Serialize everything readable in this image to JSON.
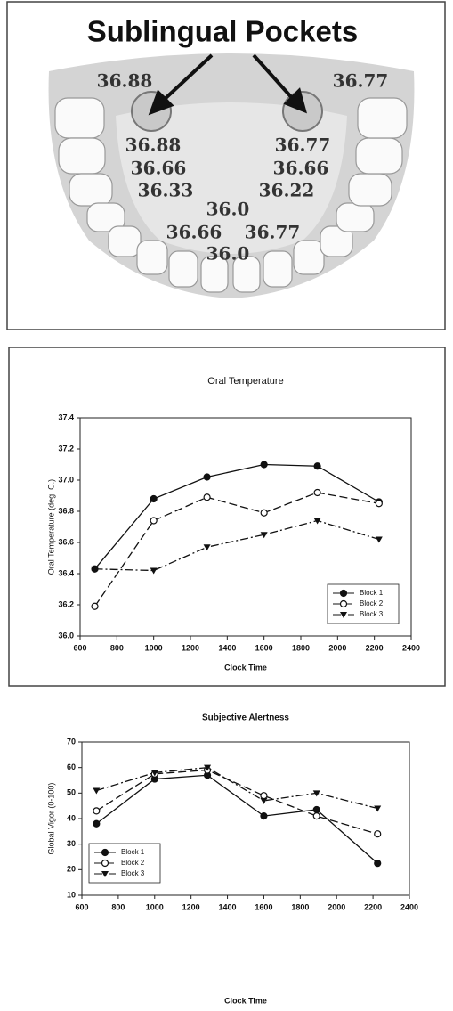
{
  "diagram": {
    "title": "Sublingual Pockets",
    "labels": [
      "36.88",
      "36.77",
      "36.88",
      "36.77",
      "36.66",
      "36.66",
      "36.33",
      "36.22",
      "36.0",
      "36.66",
      "36.77",
      "36.0"
    ]
  },
  "chart_data": [
    {
      "type": "line",
      "title": "Oral Temperature",
      "xlabel": "Clock Time",
      "ylabel": "Oral Temperature (deg. C.)",
      "x": [
        680,
        1000,
        1290,
        1600,
        1890,
        2225
      ],
      "xlim": [
        600,
        2400
      ],
      "xticks": [
        600,
        800,
        1000,
        1200,
        1400,
        1600,
        1800,
        2000,
        2200,
        2400
      ],
      "ylim": [
        36.0,
        37.4
      ],
      "yticks": [
        {
          "value": 36,
          "label": "36.0"
        },
        36.2,
        36.4,
        36.6,
        36.8,
        {
          "value": 37,
          "label": "37.0"
        },
        37.2,
        37.4
      ],
      "legend": "lower-right",
      "series": [
        {
          "name": "Block 1",
          "color": "#111111",
          "marker": "filled-circle",
          "dash": "solid",
          "values": [
            36.43,
            36.88,
            37.02,
            37.1,
            37.09,
            36.86
          ]
        },
        {
          "name": "Block 2",
          "color": "#111111",
          "marker": "open-circle",
          "dash": "dashed",
          "values": [
            36.19,
            36.74,
            36.89,
            36.79,
            36.92,
            36.85
          ]
        },
        {
          "name": "Block 3",
          "color": "#111111",
          "marker": "triangle-down",
          "dash": "dash-dot",
          "values": [
            36.43,
            36.42,
            36.57,
            36.65,
            36.74,
            36.62
          ]
        }
      ]
    },
    {
      "type": "line",
      "title": "Subjective Alertness",
      "xlabel": "Clock Time",
      "ylabel": "Global Vigor (0-100)",
      "x": [
        680,
        1000,
        1290,
        1600,
        1890,
        2225
      ],
      "xlim": [
        600,
        2400
      ],
      "xticks": [
        600,
        800,
        1000,
        1200,
        1400,
        1600,
        1800,
        2000,
        2200,
        2400
      ],
      "ylim": [
        10,
        70
      ],
      "yticks": [
        10,
        20,
        30,
        40,
        50,
        60,
        70
      ],
      "legend": "lower-left",
      "series": [
        {
          "name": "Block 1",
          "color": "#111111",
          "marker": "filled-circle",
          "dash": "solid",
          "values": [
            38,
            55.5,
            57,
            41,
            43.5,
            22.5
          ]
        },
        {
          "name": "Block 2",
          "color": "#111111",
          "marker": "open-circle",
          "dash": "dashed",
          "values": [
            43,
            57.5,
            59,
            49,
            41,
            34
          ]
        },
        {
          "name": "Block 3",
          "color": "#111111",
          "marker": "triangle-down",
          "dash": "dash-dot",
          "values": [
            51,
            58,
            60,
            47,
            50,
            44
          ]
        }
      ]
    }
  ]
}
